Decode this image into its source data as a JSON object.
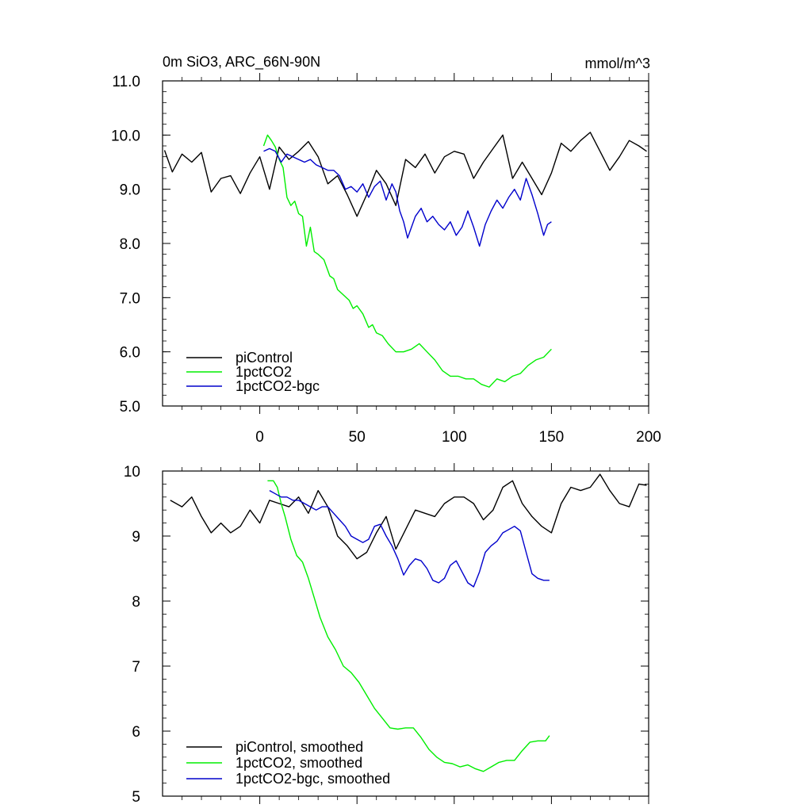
{
  "chart_data": [
    {
      "type": "line",
      "title_left": "0m SiO3, ARC_66N-90N",
      "title_right": "mmol/m^3",
      "xlim": [
        -50,
        200
      ],
      "ylim": [
        5,
        11
      ],
      "x_ticks": [
        0,
        50,
        100,
        150,
        200
      ],
      "y_ticks": [
        5,
        6,
        7,
        8,
        9,
        10,
        11
      ],
      "y_tick_labels": [
        "5.0",
        "6.0",
        "7.0",
        "8.0",
        "9.0",
        "10.0",
        "11.0"
      ],
      "grid": false,
      "legend_position": "bottom-left",
      "series": [
        {
          "name": "piControl",
          "color": "#000000",
          "x": [
            -49,
            -45,
            -40,
            -35,
            -30,
            -25,
            -20,
            -15,
            -10,
            -5,
            0,
            5,
            10,
            15,
            20,
            25,
            30,
            35,
            40,
            45,
            50,
            55,
            60,
            65,
            70,
            75,
            80,
            85,
            90,
            95,
            100,
            105,
            110,
            115,
            120,
            125,
            130,
            135,
            140,
            145,
            150,
            155,
            160,
            165,
            170,
            175,
            180,
            185,
            190,
            195,
            199
          ],
          "y": [
            9.72,
            9.32,
            9.65,
            9.5,
            9.68,
            8.95,
            9.2,
            9.25,
            8.92,
            9.3,
            9.6,
            9.0,
            9.78,
            9.55,
            9.7,
            9.88,
            9.6,
            9.1,
            9.25,
            8.9,
            8.5,
            8.9,
            9.35,
            9.1,
            8.7,
            9.55,
            9.4,
            9.65,
            9.3,
            9.6,
            9.7,
            9.65,
            9.2,
            9.5,
            9.75,
            10.0,
            9.2,
            9.5,
            9.2,
            8.9,
            9.3,
            9.85,
            9.7,
            9.9,
            10.05,
            9.7,
            9.35,
            9.6,
            9.9,
            9.8,
            9.7
          ]
        },
        {
          "name": "1pctCO2",
          "color": "#00ee00",
          "x": [
            2,
            4,
            6,
            8,
            10,
            12,
            14,
            16,
            18,
            20,
            22,
            24,
            26,
            28,
            30,
            33,
            36,
            38,
            40,
            43,
            46,
            48,
            50,
            53,
            56,
            58,
            60,
            63,
            66,
            70,
            74,
            78,
            82,
            86,
            90,
            94,
            98,
            102,
            106,
            110,
            114,
            118,
            122,
            126,
            130,
            134,
            138,
            142,
            146,
            150
          ],
          "y": [
            9.8,
            10.0,
            9.9,
            9.78,
            9.55,
            9.4,
            8.85,
            8.7,
            8.78,
            8.55,
            8.5,
            7.95,
            8.3,
            7.85,
            7.8,
            7.7,
            7.4,
            7.35,
            7.15,
            7.05,
            6.95,
            6.8,
            6.85,
            6.7,
            6.45,
            6.5,
            6.35,
            6.3,
            6.15,
            6.0,
            6.0,
            6.05,
            6.15,
            6.0,
            5.85,
            5.65,
            5.55,
            5.55,
            5.5,
            5.5,
            5.4,
            5.35,
            5.5,
            5.45,
            5.55,
            5.6,
            5.75,
            5.85,
            5.9,
            6.05
          ]
        },
        {
          "name": "1pctCO2-bgc",
          "color": "#0000cc",
          "x": [
            2,
            5,
            8,
            11,
            14,
            17,
            20,
            23,
            26,
            29,
            32,
            35,
            38,
            41,
            44,
            47,
            50,
            53,
            56,
            59,
            62,
            65,
            68,
            70,
            72,
            74,
            76,
            78,
            80,
            83,
            86,
            89,
            92,
            95,
            98,
            101,
            104,
            107,
            110,
            113,
            116,
            119,
            122,
            125,
            128,
            131,
            134,
            137,
            140,
            143,
            146,
            148,
            150
          ],
          "y": [
            9.7,
            9.75,
            9.7,
            9.5,
            9.65,
            9.6,
            9.55,
            9.5,
            9.55,
            9.45,
            9.4,
            9.35,
            9.35,
            9.25,
            9.0,
            9.05,
            8.95,
            9.1,
            8.85,
            9.05,
            9.15,
            8.8,
            9.1,
            8.95,
            8.6,
            8.4,
            8.1,
            8.3,
            8.5,
            8.65,
            8.4,
            8.5,
            8.35,
            8.25,
            8.4,
            8.15,
            8.3,
            8.6,
            8.3,
            7.95,
            8.35,
            8.6,
            8.8,
            8.65,
            8.85,
            9.0,
            8.8,
            9.2,
            8.9,
            8.55,
            8.15,
            8.35,
            8.4
          ]
        }
      ]
    },
    {
      "type": "line",
      "xlim": [
        -50,
        200
      ],
      "ylim": [
        5,
        10
      ],
      "x_ticks": [
        0,
        50,
        100,
        150,
        200
      ],
      "y_ticks": [
        5,
        6,
        7,
        8,
        9,
        10
      ],
      "y_tick_labels": [
        "5",
        "6",
        "7",
        "8",
        "9",
        "10"
      ],
      "grid": false,
      "legend_position": "bottom-left",
      "series": [
        {
          "name": "piControl, smoothed",
          "color": "#000000",
          "x": [
            -46,
            -40,
            -35,
            -30,
            -25,
            -20,
            -15,
            -10,
            -5,
            0,
            5,
            10,
            15,
            20,
            25,
            30,
            35,
            40,
            45,
            50,
            55,
            60,
            65,
            70,
            75,
            80,
            85,
            90,
            95,
            100,
            105,
            110,
            115,
            120,
            125,
            130,
            135,
            140,
            145,
            150,
            155,
            160,
            165,
            170,
            175,
            180,
            185,
            190,
            195,
            199
          ],
          "y": [
            9.55,
            9.45,
            9.6,
            9.3,
            9.05,
            9.2,
            9.05,
            9.15,
            9.4,
            9.2,
            9.55,
            9.5,
            9.45,
            9.6,
            9.35,
            9.7,
            9.45,
            9.0,
            8.85,
            8.65,
            8.75,
            9.05,
            9.3,
            8.8,
            9.1,
            9.4,
            9.35,
            9.3,
            9.5,
            9.6,
            9.6,
            9.5,
            9.25,
            9.4,
            9.75,
            9.85,
            9.5,
            9.3,
            9.15,
            9.05,
            9.5,
            9.75,
            9.7,
            9.75,
            9.95,
            9.7,
            9.5,
            9.45,
            9.8,
            9.78
          ]
        },
        {
          "name": "1pctCO2, smoothed",
          "color": "#00ee00",
          "x": [
            4,
            7,
            9,
            11,
            13,
            16,
            19,
            22,
            25,
            28,
            31,
            35,
            39,
            43,
            47,
            51,
            55,
            59,
            63,
            67,
            71,
            75,
            79,
            83,
            87,
            91,
            95,
            99,
            103,
            107,
            111,
            115,
            119,
            123,
            127,
            131,
            135,
            139,
            143,
            147,
            149
          ],
          "y": [
            9.85,
            9.85,
            9.75,
            9.5,
            9.3,
            8.95,
            8.7,
            8.6,
            8.35,
            8.05,
            7.75,
            7.45,
            7.25,
            7.0,
            6.9,
            6.75,
            6.55,
            6.35,
            6.2,
            6.05,
            6.03,
            6.05,
            6.05,
            5.9,
            5.72,
            5.6,
            5.52,
            5.5,
            5.45,
            5.48,
            5.42,
            5.38,
            5.45,
            5.52,
            5.55,
            5.55,
            5.7,
            5.83,
            5.85,
            5.85,
            5.93
          ]
        },
        {
          "name": "1pctCO2-bgc, smoothed",
          "color": "#0000cc",
          "x": [
            5,
            8,
            11,
            14,
            17,
            20,
            23,
            26,
            29,
            32,
            35,
            38,
            41,
            44,
            47,
            50,
            53,
            56,
            59,
            62,
            65,
            68,
            71,
            74,
            77,
            80,
            83,
            86,
            89,
            92,
            95,
            98,
            101,
            104,
            107,
            110,
            113,
            116,
            119,
            122,
            125,
            128,
            131,
            134,
            137,
            140,
            143,
            146,
            149
          ],
          "y": [
            9.7,
            9.65,
            9.6,
            9.6,
            9.55,
            9.55,
            9.5,
            9.45,
            9.4,
            9.45,
            9.45,
            9.35,
            9.25,
            9.15,
            9.0,
            8.95,
            8.9,
            8.95,
            9.15,
            9.18,
            9.0,
            8.85,
            8.65,
            8.4,
            8.55,
            8.65,
            8.62,
            8.5,
            8.32,
            8.28,
            8.35,
            8.55,
            8.62,
            8.45,
            8.28,
            8.22,
            8.45,
            8.75,
            8.85,
            8.92,
            9.05,
            9.1,
            9.15,
            9.08,
            8.75,
            8.42,
            8.35,
            8.32,
            8.32
          ]
        }
      ]
    }
  ]
}
